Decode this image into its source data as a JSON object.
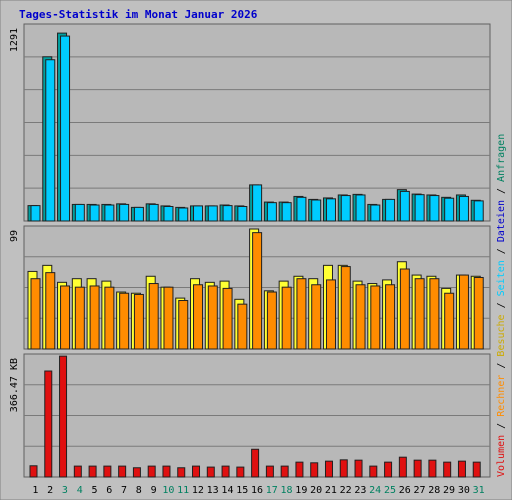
{
  "chart_data": {
    "type": "bar",
    "title": "Tages-Statistik im Monat Januar 2026",
    "categories": [
      "1",
      "2",
      "3",
      "4",
      "5",
      "6",
      "7",
      "8",
      "9",
      "10",
      "11",
      "12",
      "13",
      "14",
      "15",
      "16",
      "17",
      "18",
      "19",
      "20",
      "21",
      "22",
      "23",
      "24",
      "25",
      "26",
      "27",
      "28",
      "29",
      "30",
      "31"
    ],
    "weekend_days": [
      "3",
      "4",
      "10",
      "11",
      "17",
      "18",
      "24",
      "25",
      "31"
    ],
    "colors": {
      "frame_bg": "#c0c0c0",
      "plot_bg": "#b8b8b8",
      "grid": "#7a7a7a",
      "title": "#0000cc",
      "weekday_label": "#000000",
      "weekend_label": "#008060",
      "anfragen": "#00ccff",
      "dateien": "#00a0a0",
      "seiten": "#ffff33",
      "besuche": "#ff8c00",
      "rechner": "#ff8c00",
      "volumen": "#e01010",
      "label_anfragen": "#008060",
      "label_dateien": "#0000cc",
      "label_seiten": "#00ccff",
      "label_besuche": "#ccaa00",
      "label_rechner": "#ff8c00",
      "label_volumen": "#e01010"
    },
    "side_labels": [
      {
        "key": "label_volumen",
        "text": "Volumen"
      },
      {
        "key": "label_rechner",
        "text": "Rechner"
      },
      {
        "key": "label_besuche",
        "text": "Besuche"
      },
      {
        "key": "label_seiten",
        "text": "Seiten"
      },
      {
        "key": "label_dateien",
        "text": "Dateien"
      },
      {
        "key": "label_anfragen",
        "text": "Anfragen"
      }
    ],
    "side_separator": " / ",
    "panels": [
      {
        "id": "requests",
        "max_label": "1291",
        "max": 1291,
        "series": [
          {
            "name": "Dateien",
            "color_key": "dateien",
            "values": [
              104,
              1110,
              1270,
              112,
              112,
              112,
              116,
              92,
              116,
              102,
              92,
              102,
              102,
              108,
              102,
              244,
              128,
              128,
              166,
              146,
              156,
              176,
              180,
              112,
              146,
              212,
              182,
              176,
              160,
              176,
              140
            ]
          },
          {
            "name": "Anfragen",
            "color_key": "anfragen",
            "values": [
              104,
              1090,
              1250,
              112,
              108,
              108,
              112,
              92,
              112,
              98,
              88,
              102,
              102,
              104,
              98,
              244,
              124,
              124,
              160,
              142,
              150,
              172,
              176,
              108,
              146,
              200,
              178,
              172,
              154,
              166,
              136
            ]
          }
        ]
      },
      {
        "id": "visits",
        "max_label": "99",
        "max": 99,
        "series": [
          {
            "name": "Seiten",
            "color_key": "seiten",
            "values": [
              64,
              69,
              55,
              58,
              58,
              56,
              47,
              46,
              60,
              51,
              42,
              58,
              55,
              56,
              41,
              99,
              48,
              56,
              60,
              58,
              69,
              69,
              56,
              54,
              57,
              72,
              61,
              60,
              50,
              61,
              60
            ]
          },
          {
            "name": "Besuche",
            "color_key": "besuche",
            "values": [
              58,
              63,
              52,
              51,
              52,
              51,
              46,
              45,
              54,
              51,
              40,
              53,
              52,
              50,
              37,
              96,
              47,
              51,
              58,
              53,
              57,
              68,
              53,
              52,
              53,
              66,
              58,
              58,
              46,
              61,
              59
            ]
          }
        ]
      },
      {
        "id": "volume",
        "max_label": "366.47 KB",
        "max": 366.47,
        "series": [
          {
            "name": "Volumen",
            "color_key": "volumen",
            "values": [
              34,
              321,
              366,
              33,
              33,
              33,
              33,
              28,
              33,
              33,
              28,
              33,
              30,
              33,
              30,
              84,
              33,
              33,
              45,
              43,
              48,
              52,
              51,
              33,
              45,
              60,
              51,
              51,
              45,
              48,
              45
            ]
          }
        ]
      }
    ]
  }
}
